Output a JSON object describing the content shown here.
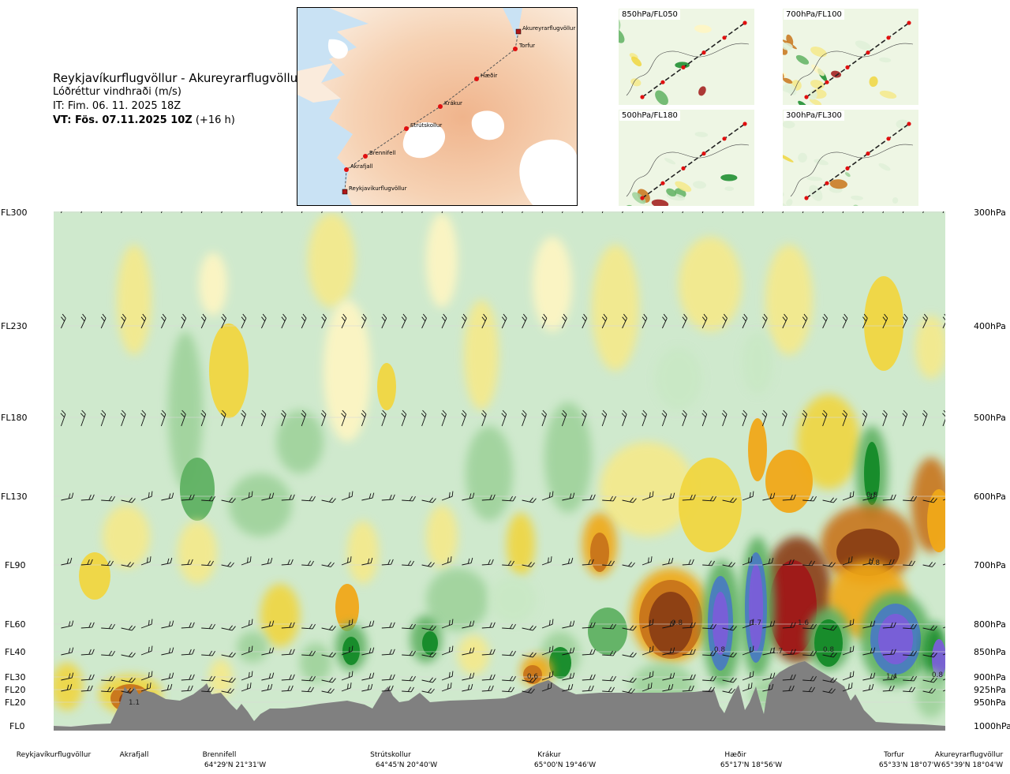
{
  "title": {
    "route": "Reykjavíkurflugvöllur - Akureyrarflugvöllur",
    "variable": "Lóðréttur vindhraði (m/s)",
    "issue_time": "IT: Fim. 06. 11. 2025 18Z",
    "valid_time_bold": "VT: Fös. 07.11.2025 10Z",
    "valid_time_rest": "(+16 h)"
  },
  "map": {
    "waypoints": [
      "Akureyrarflugvöllur",
      "Torfur",
      "Hæðir",
      "Krákur",
      "Strútskollur",
      "Brennifell",
      "Akrafjall",
      "Reykjavíkurflugvöllur"
    ]
  },
  "mini_maps": [
    {
      "label": "850hPa/FL050"
    },
    {
      "label": "700hPa/FL100"
    },
    {
      "label": "500hPa/FL180"
    },
    {
      "label": "300hPa/FL300"
    }
  ],
  "colors": {
    "up_1": "#fff6c2",
    "up_2": "#f5e98a",
    "up_3": "#f0d640",
    "up_4": "#f0a818",
    "up_5": "#c8741a",
    "up_6": "#8a3e14",
    "up_7": "#a01818",
    "down_1": "#e6f4e0",
    "down_2": "#c9e8c5",
    "down_3": "#9fd29b",
    "down_4": "#5fb162",
    "down_5": "#148a28",
    "down_6": "#4a7cc0",
    "down_7": "#7a5ed8",
    "terrain": "#808080",
    "sea": "#c9e2f4"
  },
  "chart_data": {
    "type": "heatmap",
    "title": "Lóðréttur vindhraði (m/s)",
    "xlabel": "",
    "ylabel": "",
    "y_levels": [
      {
        "fl": "FL300",
        "hpa": "300hPa"
      },
      {
        "fl": "FL230",
        "hpa": "400hPa"
      },
      {
        "fl": "FL180",
        "hpa": "500hPa"
      },
      {
        "fl": "FL130",
        "hpa": "600hPa"
      },
      {
        "fl": "FL90",
        "hpa": "700hPa"
      },
      {
        "fl": "FL60",
        "hpa": "800hPa"
      },
      {
        "fl": "FL40",
        "hpa": "850hPa"
      },
      {
        "fl": "FL30",
        "hpa": "900hPa"
      },
      {
        "fl": "FL20",
        "hpa": "925hPa"
      },
      {
        "fl": "FL20",
        "hpa": "950hPa"
      },
      {
        "fl": "FL0",
        "hpa": "1000hPa"
      }
    ],
    "locations": [
      {
        "name": "Reykjavíkurflugvöllur",
        "coord": ""
      },
      {
        "name": "Akrafjall",
        "coord": ""
      },
      {
        "name": "Brennifell",
        "coord": "64°29'N 21°31'W"
      },
      {
        "name": "Strútskollur",
        "coord": "64°45'N 20°40'W"
      },
      {
        "name": "Krákur",
        "coord": "65°00'N 19°46'W"
      },
      {
        "name": "Hæðir",
        "coord": "65°17'N 18°56'W"
      },
      {
        "name": "Torfur",
        "coord": "65°33'N 18°07'W"
      },
      {
        "name": "Akureyrarflugvöllur",
        "coord": "65°39'N 18°04'W"
      }
    ],
    "annotations": [
      "1.1",
      "0.6",
      "0.8",
      "0.8",
      "1.7",
      "1.7",
      "1.6",
      "0.8",
      "1.4",
      "0.8",
      "0.8",
      "0.8"
    ],
    "grid": true,
    "legend": "none"
  }
}
